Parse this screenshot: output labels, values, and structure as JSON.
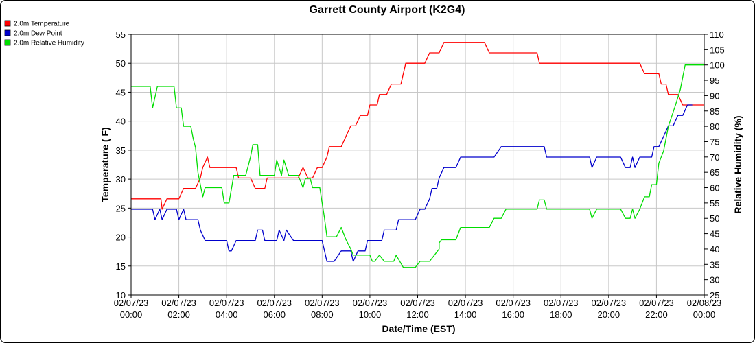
{
  "chart_data": {
    "type": "line",
    "title": "Garrett County Airport (K2G4)",
    "xlabel": "Date/Time (EST)",
    "ylabel": "Temperature ( F)",
    "y2label": "Relative Humidity (%)",
    "ylim": [
      10,
      55
    ],
    "y2lim": [
      25,
      110
    ],
    "xlim": [
      "02/07/23 00:00",
      "02/08/23 00:00"
    ],
    "grid": true,
    "legend_position": "top-left",
    "x_ticks": [
      {
        "date": "02/07/23",
        "time": "00:00",
        "hour": 0
      },
      {
        "date": "02/07/23",
        "time": "02:00",
        "hour": 2
      },
      {
        "date": "02/07/23",
        "time": "04:00",
        "hour": 4
      },
      {
        "date": "02/07/23",
        "time": "06:00",
        "hour": 6
      },
      {
        "date": "02/07/23",
        "time": "08:00",
        "hour": 8
      },
      {
        "date": "02/07/23",
        "time": "10:00",
        "hour": 10
      },
      {
        "date": "02/07/23",
        "time": "12:00",
        "hour": 12
      },
      {
        "date": "02/07/23",
        "time": "14:00",
        "hour": 14
      },
      {
        "date": "02/07/23",
        "time": "16:00",
        "hour": 16
      },
      {
        "date": "02/07/23",
        "time": "18:00",
        "hour": 18
      },
      {
        "date": "02/07/23",
        "time": "20:00",
        "hour": 20
      },
      {
        "date": "02/07/23",
        "time": "22:00",
        "hour": 22
      },
      {
        "date": "02/08/23",
        "time": "00:00",
        "hour": 24
      }
    ],
    "y_ticks": [
      10,
      15,
      20,
      25,
      30,
      35,
      40,
      45,
      50,
      55
    ],
    "y2_ticks": [
      25,
      30,
      35,
      40,
      45,
      50,
      55,
      60,
      65,
      70,
      75,
      80,
      85,
      90,
      95,
      100,
      105,
      110
    ],
    "series": [
      {
        "name": "2.0m Temperature",
        "color": "#ff0000",
        "axis": "left",
        "points": [
          [
            0,
            26.6
          ],
          [
            1.0,
            26.6
          ],
          [
            1.25,
            26.6
          ],
          [
            1.3,
            24.8
          ],
          [
            1.5,
            26.6
          ],
          [
            2.0,
            26.6
          ],
          [
            2.2,
            28.4
          ],
          [
            2.7,
            28.4
          ],
          [
            2.9,
            30.2
          ],
          [
            3.0,
            32.0
          ],
          [
            3.2,
            33.8
          ],
          [
            3.3,
            32.0
          ],
          [
            4.0,
            32.0
          ],
          [
            4.4,
            32.0
          ],
          [
            4.5,
            30.2
          ],
          [
            5.0,
            30.2
          ],
          [
            5.2,
            28.4
          ],
          [
            5.6,
            28.4
          ],
          [
            5.7,
            30.2
          ],
          [
            7.0,
            30.2
          ],
          [
            7.2,
            32.0
          ],
          [
            7.4,
            30.2
          ],
          [
            7.6,
            30.2
          ],
          [
            7.8,
            32.0
          ],
          [
            8.0,
            32.0
          ],
          [
            8.2,
            33.8
          ],
          [
            8.3,
            35.6
          ],
          [
            8.8,
            35.6
          ],
          [
            9.0,
            37.4
          ],
          [
            9.2,
            39.2
          ],
          [
            9.4,
            39.2
          ],
          [
            9.6,
            41.0
          ],
          [
            9.9,
            41.0
          ],
          [
            10.0,
            42.8
          ],
          [
            10.3,
            42.8
          ],
          [
            10.4,
            44.6
          ],
          [
            10.7,
            44.6
          ],
          [
            10.9,
            46.4
          ],
          [
            11.3,
            46.4
          ],
          [
            11.5,
            50.0
          ],
          [
            12.3,
            50.0
          ],
          [
            12.5,
            51.8
          ],
          [
            12.9,
            51.8
          ],
          [
            13.1,
            53.6
          ],
          [
            14.8,
            53.6
          ],
          [
            15.0,
            51.8
          ],
          [
            17.0,
            51.8
          ],
          [
            17.1,
            50.0
          ],
          [
            21.3,
            50.0
          ],
          [
            21.5,
            48.2
          ],
          [
            22.1,
            48.2
          ],
          [
            22.2,
            46.4
          ],
          [
            22.4,
            46.4
          ],
          [
            22.5,
            44.6
          ],
          [
            22.9,
            44.6
          ],
          [
            23.1,
            42.8
          ],
          [
            24,
            42.8
          ]
        ]
      },
      {
        "name": "2.0m Dew Point",
        "color": "#0000cc",
        "axis": "left",
        "points": [
          [
            0,
            24.8
          ],
          [
            0.9,
            24.8
          ],
          [
            1.0,
            23.0
          ],
          [
            1.2,
            24.8
          ],
          [
            1.3,
            23.0
          ],
          [
            1.5,
            24.8
          ],
          [
            1.9,
            24.8
          ],
          [
            2.0,
            23.0
          ],
          [
            2.2,
            24.8
          ],
          [
            2.3,
            23.0
          ],
          [
            2.8,
            23.0
          ],
          [
            2.9,
            21.2
          ],
          [
            3.1,
            19.4
          ],
          [
            4.0,
            19.4
          ],
          [
            4.1,
            17.6
          ],
          [
            4.2,
            17.6
          ],
          [
            4.4,
            19.4
          ],
          [
            5.2,
            19.4
          ],
          [
            5.3,
            21.2
          ],
          [
            5.5,
            21.2
          ],
          [
            5.6,
            19.4
          ],
          [
            6.1,
            19.4
          ],
          [
            6.2,
            21.2
          ],
          [
            6.4,
            19.4
          ],
          [
            6.5,
            21.2
          ],
          [
            6.8,
            19.4
          ],
          [
            7.8,
            19.4
          ],
          [
            8.0,
            19.4
          ],
          [
            8.1,
            17.6
          ],
          [
            8.2,
            15.8
          ],
          [
            8.5,
            15.8
          ],
          [
            8.8,
            17.6
          ],
          [
            9.2,
            17.6
          ],
          [
            9.3,
            15.8
          ],
          [
            9.5,
            17.6
          ],
          [
            9.8,
            17.6
          ],
          [
            9.9,
            19.4
          ],
          [
            10.5,
            19.4
          ],
          [
            10.6,
            21.2
          ],
          [
            11.1,
            21.2
          ],
          [
            11.2,
            23.0
          ],
          [
            11.9,
            23.0
          ],
          [
            12.1,
            24.8
          ],
          [
            12.3,
            24.8
          ],
          [
            12.5,
            26.6
          ],
          [
            12.6,
            28.4
          ],
          [
            12.8,
            28.4
          ],
          [
            12.9,
            30.2
          ],
          [
            13.1,
            32.0
          ],
          [
            13.6,
            32.0
          ],
          [
            13.8,
            33.8
          ],
          [
            15.2,
            33.8
          ],
          [
            15.5,
            35.6
          ],
          [
            17.3,
            35.6
          ],
          [
            17.4,
            33.8
          ],
          [
            19.0,
            33.8
          ],
          [
            19.2,
            33.8
          ],
          [
            19.3,
            32.0
          ],
          [
            19.5,
            33.8
          ],
          [
            20.5,
            33.8
          ],
          [
            20.7,
            32.0
          ],
          [
            20.9,
            32.0
          ],
          [
            21.0,
            33.8
          ],
          [
            21.1,
            32.0
          ],
          [
            21.3,
            33.8
          ],
          [
            21.8,
            33.8
          ],
          [
            21.9,
            35.6
          ],
          [
            22.1,
            35.6
          ],
          [
            22.3,
            37.4
          ],
          [
            22.5,
            39.2
          ],
          [
            22.7,
            39.2
          ],
          [
            22.9,
            41.0
          ],
          [
            23.1,
            41.0
          ],
          [
            23.3,
            42.8
          ],
          [
            23.5,
            42.8
          ]
        ]
      },
      {
        "name": "2.0m Relative Humidity",
        "color": "#00dd00",
        "axis": "right",
        "points": [
          [
            0,
            93
          ],
          [
            0.8,
            93
          ],
          [
            0.9,
            86
          ],
          [
            1.1,
            93
          ],
          [
            1.8,
            93
          ],
          [
            1.9,
            86
          ],
          [
            2.1,
            86
          ],
          [
            2.2,
            80
          ],
          [
            2.5,
            80
          ],
          [
            2.6,
            76
          ],
          [
            2.7,
            73
          ],
          [
            2.8,
            65
          ],
          [
            3.0,
            57
          ],
          [
            3.1,
            60
          ],
          [
            3.8,
            60
          ],
          [
            3.9,
            55
          ],
          [
            4.1,
            55
          ],
          [
            4.3,
            64
          ],
          [
            4.8,
            64
          ],
          [
            5.0,
            70
          ],
          [
            5.1,
            74
          ],
          [
            5.3,
            74
          ],
          [
            5.4,
            64
          ],
          [
            6.0,
            64
          ],
          [
            6.1,
            69
          ],
          [
            6.3,
            64
          ],
          [
            6.4,
            69
          ],
          [
            6.6,
            64
          ],
          [
            7.0,
            64
          ],
          [
            7.2,
            60
          ],
          [
            7.3,
            63
          ],
          [
            7.5,
            63
          ],
          [
            7.6,
            60
          ],
          [
            7.9,
            60
          ],
          [
            8.1,
            50
          ],
          [
            8.2,
            44
          ],
          [
            8.6,
            44
          ],
          [
            8.8,
            47
          ],
          [
            9.0,
            43
          ],
          [
            9.2,
            40
          ],
          [
            9.3,
            38
          ],
          [
            9.8,
            38
          ],
          [
            10.0,
            38
          ],
          [
            10.1,
            36
          ],
          [
            10.2,
            36
          ],
          [
            10.4,
            38
          ],
          [
            10.6,
            36
          ],
          [
            11.0,
            36
          ],
          [
            11.1,
            38
          ],
          [
            11.4,
            34
          ],
          [
            11.9,
            34
          ],
          [
            12.1,
            36
          ],
          [
            12.5,
            36
          ],
          [
            12.7,
            38
          ],
          [
            12.9,
            40
          ],
          [
            12.9,
            42
          ],
          [
            13.0,
            43
          ],
          [
            13.6,
            43
          ],
          [
            13.8,
            47
          ],
          [
            15.0,
            47
          ],
          [
            15.2,
            50
          ],
          [
            15.5,
            50
          ],
          [
            15.7,
            53
          ],
          [
            17.0,
            53
          ],
          [
            17.1,
            56
          ],
          [
            17.3,
            56
          ],
          [
            17.4,
            53
          ],
          [
            19.0,
            53
          ],
          [
            19.2,
            53
          ],
          [
            19.3,
            50
          ],
          [
            19.5,
            53
          ],
          [
            20.5,
            53
          ],
          [
            20.7,
            50
          ],
          [
            20.9,
            50
          ],
          [
            21.0,
            53
          ],
          [
            21.1,
            50
          ],
          [
            21.3,
            53
          ],
          [
            21.5,
            57
          ],
          [
            21.7,
            57
          ],
          [
            21.8,
            61
          ],
          [
            22.0,
            61
          ],
          [
            22.1,
            68
          ],
          [
            22.3,
            72
          ],
          [
            22.5,
            80
          ],
          [
            22.8,
            87
          ],
          [
            23.0,
            92
          ],
          [
            23.2,
            100
          ],
          [
            24,
            100
          ]
        ]
      }
    ]
  }
}
